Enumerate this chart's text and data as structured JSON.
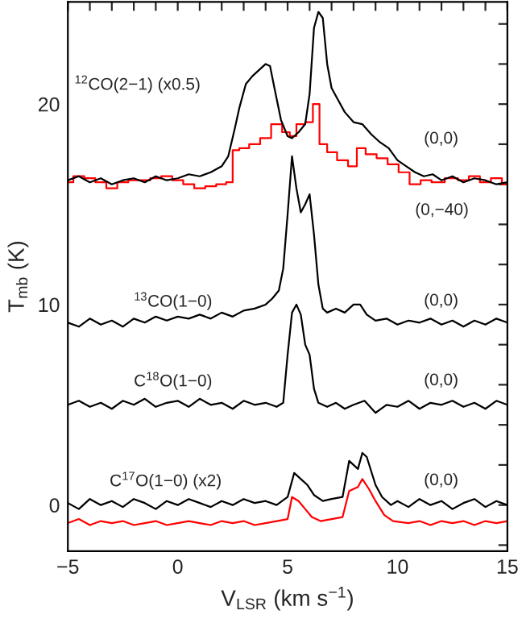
{
  "chart_data": {
    "type": "line",
    "xlabel": "V$_{LSR}$ (km s$^{−1}$)",
    "ylabel": "T$_{mb}$ (K)",
    "xlim": [
      -5,
      15
    ],
    "ylim": [
      -2.3,
      25.1
    ],
    "xticks": [
      {
        "value": -5,
        "label": "−5"
      },
      {
        "value": -4,
        "label": null
      },
      {
        "value": -3,
        "label": null
      },
      {
        "value": -2,
        "label": null
      },
      {
        "value": -1,
        "label": null
      },
      0,
      {
        "value": 1,
        "label": null
      },
      {
        "value": 2,
        "label": null
      },
      {
        "value": 3,
        "label": null
      },
      {
        "value": 4,
        "label": null
      },
      5,
      {
        "value": 6,
        "label": null
      },
      {
        "value": 7,
        "label": null
      },
      {
        "value": 8,
        "label": null
      },
      {
        "value": 9,
        "label": null
      },
      10,
      {
        "value": 11,
        "label": null
      },
      {
        "value": 12,
        "label": null
      },
      {
        "value": 13,
        "label": null
      },
      {
        "value": 14,
        "label": null
      },
      15
    ],
    "yticks": [
      {
        "value": -2,
        "label": null
      },
      0,
      {
        "value": 2,
        "label": null
      },
      {
        "value": 4,
        "label": null
      },
      {
        "value": 6,
        "label": null
      },
      {
        "value": 8,
        "label": null
      },
      10,
      {
        "value": 12,
        "label": null
      },
      {
        "value": 14,
        "label": null
      },
      {
        "value": 16,
        "label": null
      },
      {
        "value": 18,
        "label": null
      },
      20,
      {
        "value": 22,
        "label": null
      },
      {
        "value": 24,
        "label": null
      }
    ],
    "series": [
      {
        "color": "#ff0000",
        "type": "step",
        "x": [
          -5,
          -4.5,
          -4,
          -3.5,
          -3,
          -2.5,
          -2,
          -1.5,
          -1,
          -0.5,
          0,
          0.5,
          1,
          1.5,
          2,
          2.4,
          2.6,
          3,
          3.5,
          4,
          4.5,
          5,
          5.2,
          5.6,
          6.0,
          6.3,
          6.6,
          7.0,
          7.5,
          8.0,
          8.3,
          8.8,
          9.3,
          9.8,
          10.3,
          10.8,
          11.3,
          11.8,
          12.5,
          13,
          13.5,
          14,
          14.5,
          15
        ],
        "values": [
          16.1,
          16.4,
          16.3,
          16.1,
          15.8,
          16.1,
          16.2,
          16.2,
          16.3,
          16.4,
          16.2,
          16.0,
          15.8,
          15.9,
          16.0,
          16.1,
          17.7,
          17.8,
          18.0,
          18.3,
          19.0,
          18.6,
          18.4,
          19.0,
          19.1,
          20.0,
          18.0,
          17.6,
          17.2,
          16.9,
          17.8,
          17.5,
          17.3,
          17.0,
          16.6,
          16.0,
          16.2,
          16.1,
          16.3,
          16.2,
          16.4,
          16.1,
          16.3,
          16.0
        ]
      },
      {
        "color": "#000000",
        "x": [
          -5,
          -4.5,
          -4,
          -3.5,
          -3,
          -2.5,
          -2,
          -1.5,
          -1,
          -0.5,
          0,
          0.5,
          1,
          1.5,
          2,
          2.3,
          2.6,
          2.8,
          3.1,
          3.4,
          3.7,
          4.0,
          4.2,
          4.4,
          4.7,
          5.0,
          5.2,
          5.5,
          5.8,
          6.0,
          6.2,
          6.4,
          6.6,
          6.8,
          7.0,
          7.3,
          7.6,
          8.0,
          8.4,
          8.8,
          9.2,
          9.6,
          10,
          10.4,
          10.8,
          11.2,
          11.6,
          12,
          12.5,
          13,
          13.5,
          14,
          14.5,
          15
        ],
        "values": [
          16.2,
          16.4,
          16.1,
          16.3,
          16.0,
          16.2,
          16.3,
          16.1,
          16.4,
          16.2,
          16.3,
          16.5,
          16.4,
          16.6,
          16.9,
          17.4,
          18.8,
          19.8,
          21.0,
          21.4,
          21.7,
          22.0,
          21.9,
          20.8,
          19.2,
          18.4,
          18.3,
          18.6,
          19.0,
          20.5,
          23.8,
          24.6,
          24.3,
          22.0,
          20.8,
          20.2,
          19.6,
          19.1,
          19.0,
          18.5,
          18.1,
          17.8,
          17.2,
          16.9,
          16.6,
          16.4,
          16.5,
          16.2,
          16.4,
          16.1,
          16.3,
          16.2,
          16.0,
          16.1
        ]
      },
      {
        "color": "#000000",
        "x": [
          -5,
          -4.5,
          -4,
          -3.5,
          -3,
          -2.5,
          -2,
          -1.5,
          -1,
          -0.5,
          0,
          0.5,
          1,
          1.5,
          2,
          2.5,
          3,
          3.5,
          4,
          4.3,
          4.6,
          4.8,
          5.0,
          5.2,
          5.4,
          5.6,
          5.8,
          6.0,
          6.2,
          6.4,
          6.6,
          6.8,
          7.2,
          7.6,
          8.0,
          8.3,
          8.6,
          9,
          9.5,
          10,
          10.5,
          11,
          11.5,
          12,
          12.5,
          13,
          13.5,
          14,
          14.5,
          15
        ],
        "values": [
          9.1,
          8.9,
          9.3,
          9.0,
          9.2,
          8.9,
          9.3,
          9.1,
          9.4,
          9.2,
          9.4,
          9.3,
          9.5,
          9.3,
          9.6,
          9.4,
          9.7,
          9.8,
          10.0,
          10.3,
          10.7,
          11.8,
          14.5,
          17.4,
          15.8,
          14.6,
          15.0,
          15.5,
          13.5,
          11.0,
          9.8,
          9.6,
          9.8,
          9.6,
          10.0,
          10.0,
          9.5,
          9.2,
          9.3,
          9.0,
          9.2,
          9.1,
          9.3,
          9.0,
          9.2,
          8.9,
          9.2,
          9.0,
          9.3,
          9.1
        ]
      },
      {
        "color": "#000000",
        "x": [
          -5,
          -4.5,
          -4,
          -3.5,
          -3,
          -2.5,
          -2,
          -1.5,
          -1,
          -0.5,
          0,
          0.5,
          1,
          1.5,
          2,
          2.5,
          3,
          3.5,
          4,
          4.5,
          4.8,
          5.0,
          5.2,
          5.4,
          5.6,
          5.8,
          6.0,
          6.2,
          6.4,
          6.8,
          7.2,
          7.6,
          8,
          8.5,
          9,
          9.5,
          10,
          10.5,
          11,
          11.5,
          12,
          12.5,
          13,
          13.5,
          14,
          14.5,
          15
        ],
        "values": [
          5.0,
          5.2,
          4.9,
          5.1,
          4.8,
          5.2,
          5.0,
          5.3,
          4.9,
          5.1,
          5.2,
          4.9,
          5.3,
          5.0,
          5.1,
          4.8,
          5.2,
          5.0,
          5.1,
          4.9,
          5.1,
          7.5,
          9.6,
          10.0,
          9.5,
          8.0,
          7.5,
          5.8,
          5.1,
          4.9,
          5.1,
          4.8,
          5.0,
          5.2,
          4.6,
          5.0,
          4.9,
          5.2,
          4.8,
          5.1,
          5.0,
          5.2,
          4.9,
          5.1,
          4.8,
          5.2,
          5.0
        ]
      },
      {
        "color": "#ff0000",
        "x": [
          -5,
          -4.5,
          -4,
          -3.5,
          -3,
          -2.5,
          -2,
          -1.5,
          -1,
          -0.5,
          0,
          0.5,
          1,
          1.5,
          2,
          2.5,
          3,
          3.5,
          4,
          4.5,
          5.0,
          5.2,
          5.5,
          5.8,
          6.1,
          6.5,
          7,
          7.5,
          7.8,
          8.2,
          8.4,
          8.7,
          9.0,
          9.4,
          9.8,
          10.5,
          11,
          11.5,
          12,
          12.5,
          13,
          13.5,
          14,
          14.5,
          15
        ],
        "values": [
          -0.9,
          -0.7,
          -1.0,
          -0.8,
          -0.9,
          -0.8,
          -1.0,
          -0.9,
          -0.8,
          -1.0,
          -0.9,
          -0.8,
          -0.9,
          -1.0,
          -0.8,
          -0.9,
          -0.8,
          -1.0,
          -0.9,
          -0.8,
          -0.7,
          0.4,
          0.2,
          -0.2,
          -0.6,
          -0.8,
          -0.7,
          -0.6,
          0.7,
          0.9,
          1.3,
          0.8,
          0.2,
          -0.5,
          -0.8,
          -0.9,
          -0.8,
          -1.0,
          -0.8,
          -0.9,
          -0.8,
          -1.0,
          -0.8,
          -0.9,
          -0.8
        ]
      },
      {
        "color": "#000000",
        "x": [
          -5,
          -4.5,
          -4,
          -3.5,
          -3,
          -2.5,
          -2,
          -1.5,
          -1,
          -0.5,
          0,
          0.5,
          1,
          1.5,
          2,
          2.5,
          3,
          3.5,
          4,
          4.5,
          5.0,
          5.3,
          5.6,
          5.9,
          6.2,
          6.6,
          7.0,
          7.5,
          7.8,
          8.0,
          8.2,
          8.4,
          8.6,
          9.0,
          9.3,
          9.7,
          10,
          10.5,
          11,
          11.5,
          12,
          12.5,
          13,
          13.5,
          14,
          14.5,
          15
        ],
        "values": [
          0.1,
          -0.2,
          0.3,
          0.0,
          0.2,
          -0.1,
          0.3,
          0.1,
          -0.2,
          0.2,
          0.0,
          0.3,
          0.1,
          -0.1,
          0.2,
          0.0,
          0.3,
          0.1,
          0.2,
          0.0,
          0.4,
          1.6,
          1.3,
          1.0,
          0.5,
          0.2,
          0.3,
          0.4,
          2.2,
          2.0,
          1.8,
          2.6,
          2.4,
          1.0,
          0.4,
          0.0,
          0.2,
          -0.1,
          0.3,
          0.0,
          0.2,
          -0.2,
          0.1,
          0.3,
          -0.1,
          0.2,
          0.0
        ]
      }
    ],
    "annotations": [
      "$^{12}$CO(2−1) (x0.5)",
      "(0,0)",
      "(0,−40)",
      "$^{13}$CO(1−0)",
      "(0,0)",
      "C$^{18}$O(1−0)",
      "(0,0)",
      "C$^{17}$O(1−0) (x2)",
      "(0,0)"
    ]
  }
}
